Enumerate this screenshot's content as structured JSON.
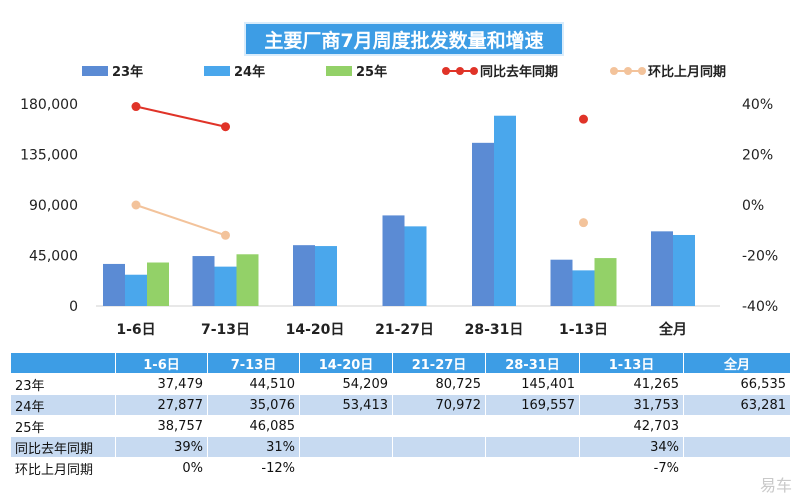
{
  "chart_data": {
    "type": "bar",
    "title": "主要厂商7月周度批发数量和增速",
    "categories": [
      "1-6日",
      "7-13日",
      "14-20日",
      "21-27日",
      "28-31日",
      "1-13日",
      "全月"
    ],
    "series": [
      {
        "name": "23年",
        "values": [
          37479,
          44510,
          54209,
          80725,
          145401,
          41265,
          66535
        ],
        "color": "#5b8bd4"
      },
      {
        "name": "24年",
        "values": [
          27877,
          35076,
          53413,
          70972,
          169557,
          31753,
          63281
        ],
        "color": "#4aa7ec"
      },
      {
        "name": "25年",
        "values": [
          38757,
          46085,
          null,
          null,
          null,
          42703,
          null
        ],
        "color": "#93d168"
      }
    ],
    "lines": [
      {
        "name": "同比去年同期",
        "values": [
          39,
          31,
          null,
          null,
          null,
          34,
          null
        ],
        "color": "#e03328"
      },
      {
        "name": "环比上月同期",
        "values": [
          0,
          -12,
          null,
          null,
          null,
          -7,
          null
        ],
        "color": "#f3c39b"
      }
    ],
    "ylim": [
      0,
      180000
    ],
    "yticks": [
      "0",
      "45,000",
      "90,000",
      "135,000",
      "180,000"
    ],
    "y2lim": [
      -40,
      40
    ],
    "y2ticks": [
      "-40%",
      "-20%",
      "0%",
      "20%",
      "40%"
    ],
    "legend_position": "top"
  },
  "table": {
    "header": [
      "",
      "1-6日",
      "7-13日",
      "14-20日",
      "21-27日",
      "28-31日",
      "1-13日",
      "全月"
    ],
    "rows": [
      [
        "23年",
        "37,479",
        "44,510",
        "54,209",
        "80,725",
        "145,401",
        "41,265",
        "66,535"
      ],
      [
        "24年",
        "27,877",
        "35,076",
        "53,413",
        "70,972",
        "169,557",
        "31,753",
        "63,281"
      ],
      [
        "25年",
        "38,757",
        "46,085",
        "",
        "",
        "",
        "42,703",
        ""
      ],
      [
        "同比去年同期",
        "39%",
        "31%",
        "",
        "",
        "",
        "34%",
        ""
      ],
      [
        "环比上月同期",
        "0%",
        "-12%",
        "",
        "",
        "",
        "-7%",
        ""
      ]
    ]
  },
  "watermark": "易车"
}
